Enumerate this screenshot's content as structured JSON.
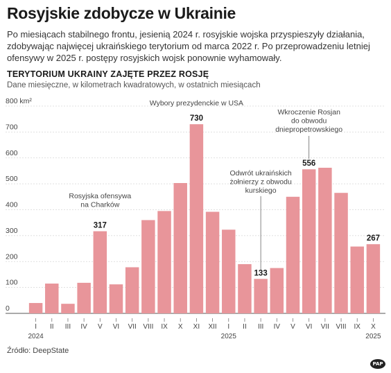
{
  "header": {
    "title": "Rosyjskie zdobycze w Ukrainie",
    "intro": "Po miesiącach stabilnego frontu, jesienią 2024 r. rosyjskie wojska przyspieszyły działania, zdobywając najwięcej ukraińskiego terytorium od marca 2022 r. Po przeprowadzeniu letniej ofensywy w 2025 r. postępy rosyjskich wojsk ponownie wyhamowały.",
    "subtitle": "TERYTORIUM UKRAINY ZAJĘTE PRZEZ ROSJĘ",
    "unit_note": "Dane miesięczne, w kilometrach kwadratowych, w ostatnich miesiącach"
  },
  "chart_data": {
    "type": "bar",
    "categories": [
      "I",
      "II",
      "III",
      "IV",
      "V",
      "VI",
      "VII",
      "VIII",
      "IX",
      "X",
      "XI",
      "XII",
      "I",
      "II",
      "III",
      "IV",
      "V",
      "VI",
      "VII",
      "VIII",
      "IX",
      "X"
    ],
    "years": [
      {
        "label": "2024",
        "index": 0
      },
      {
        "label": "2025",
        "index": 12
      },
      {
        "label": "2025",
        "index": 21
      }
    ],
    "values": [
      40,
      115,
      37,
      118,
      317,
      112,
      178,
      360,
      395,
      503,
      730,
      392,
      323,
      190,
      133,
      175,
      450,
      556,
      562,
      465,
      258,
      267
    ],
    "ylim": [
      0,
      800
    ],
    "yticks": [
      0,
      100,
      200,
      300,
      400,
      500,
      600,
      700,
      800
    ],
    "ytick_labels": [
      "0",
      "100",
      "200",
      "300",
      "400",
      "500",
      "600",
      "700",
      "800 km²"
    ],
    "bar_color": "#e8959a",
    "grid": true,
    "data_labels": [
      {
        "index": 4,
        "text": "317"
      },
      {
        "index": 10,
        "text": "730"
      },
      {
        "index": 14,
        "text": "133"
      },
      {
        "index": 17,
        "text": "556"
      },
      {
        "index": 21,
        "text": "267"
      }
    ],
    "annotations": [
      {
        "index": 4,
        "lines": [
          "Rosyjska ofensywa",
          "na Charków"
        ],
        "leader": false
      },
      {
        "index": 10,
        "lines": [
          "Wybory prezydenckie w USA"
        ],
        "leader": false
      },
      {
        "index": 14,
        "lines": [
          "Odwrót ukraińskich",
          "żołnierzy z obwodu",
          "kurskiego"
        ],
        "leader": true
      },
      {
        "index": 17,
        "lines": [
          "Wkroczenie Rosjan",
          "do obwodu",
          "dniepropetrowskiego"
        ],
        "leader": true
      }
    ]
  },
  "footer": {
    "source": "Źródło: DeepState",
    "logo": "PAP"
  }
}
